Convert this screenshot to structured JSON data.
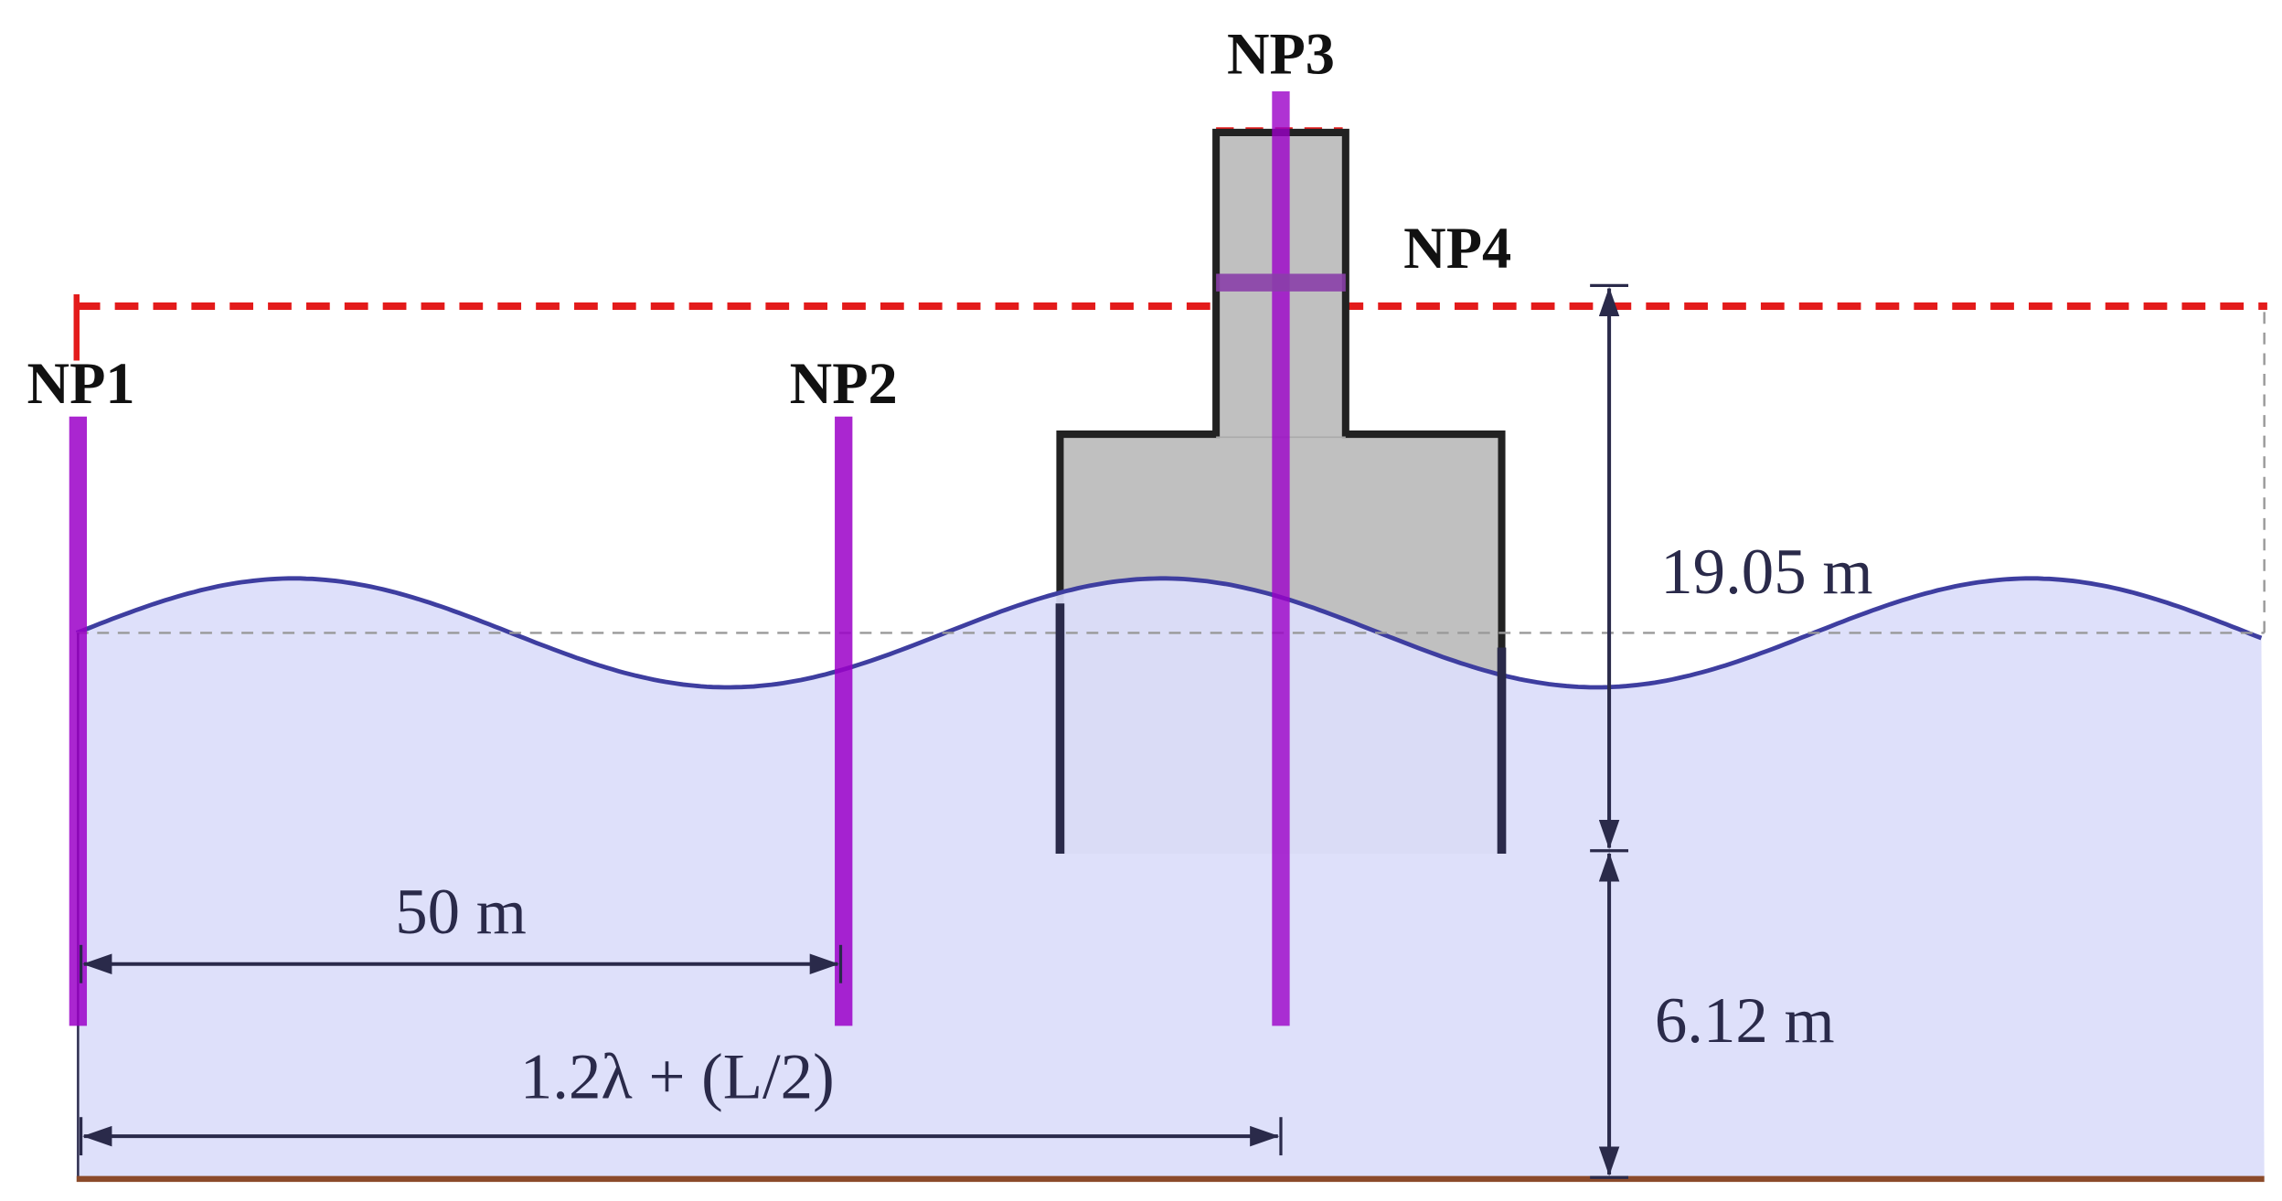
{
  "probes": {
    "np1": "NP1",
    "np2": "NP2",
    "np3": "NP3",
    "np4": "NP4"
  },
  "dimensions": {
    "height_above": "19.05 m",
    "depth": "6.12 m",
    "spacing": "50 m",
    "offset": "1.2λ + (L/2)"
  }
}
